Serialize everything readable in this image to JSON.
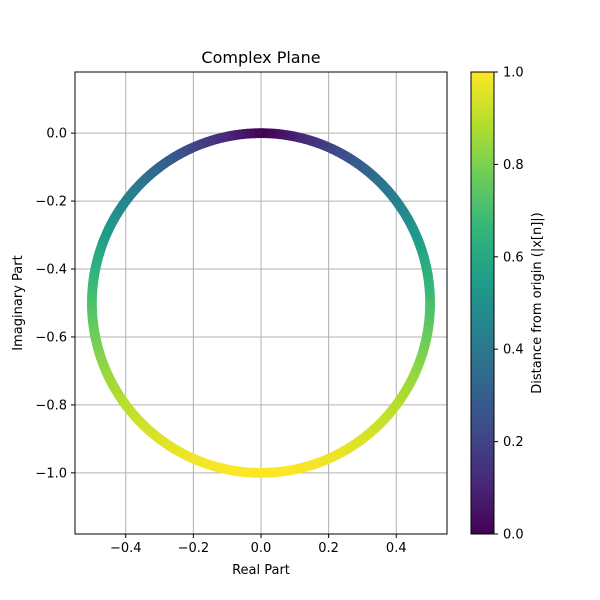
{
  "chart_data": {
    "type": "scatter",
    "title": "Complex Plane",
    "xlabel": "Real Part",
    "ylabel": "Imaginary Part",
    "xlim": [
      -0.55,
      0.55
    ],
    "ylim": [
      -1.18,
      0.18
    ],
    "grid": true,
    "xticks": [
      -0.4,
      -0.2,
      0.0,
      0.2,
      0.4
    ],
    "xtick_labels": [
      "−0.4",
      "−0.2",
      "0.0",
      "0.2",
      "0.4"
    ],
    "yticks": [
      0.0,
      -0.2,
      -0.4,
      -0.6,
      -0.8,
      -1.0
    ],
    "ytick_labels": [
      "0.0",
      "−0.2",
      "−0.4",
      "−0.6",
      "−0.8",
      "−1.0"
    ],
    "curve": {
      "description_of_points": "circle of radius 0.5 centered at (0, -0.5); color = |x[n]| = -imag part",
      "center": [
        0.0,
        -0.5
      ],
      "radius": 0.5,
      "num_points": 400
    },
    "colorbar": {
      "label": "Distance from origin (|x[n]|)",
      "range": [
        0.0,
        1.0
      ],
      "ticks": [
        0.0,
        0.2,
        0.4,
        0.6,
        0.8,
        1.0
      ],
      "tick_labels": [
        "0.0",
        "0.2",
        "0.4",
        "0.6",
        "0.8",
        "1.0"
      ],
      "colormap": "viridis"
    }
  }
}
